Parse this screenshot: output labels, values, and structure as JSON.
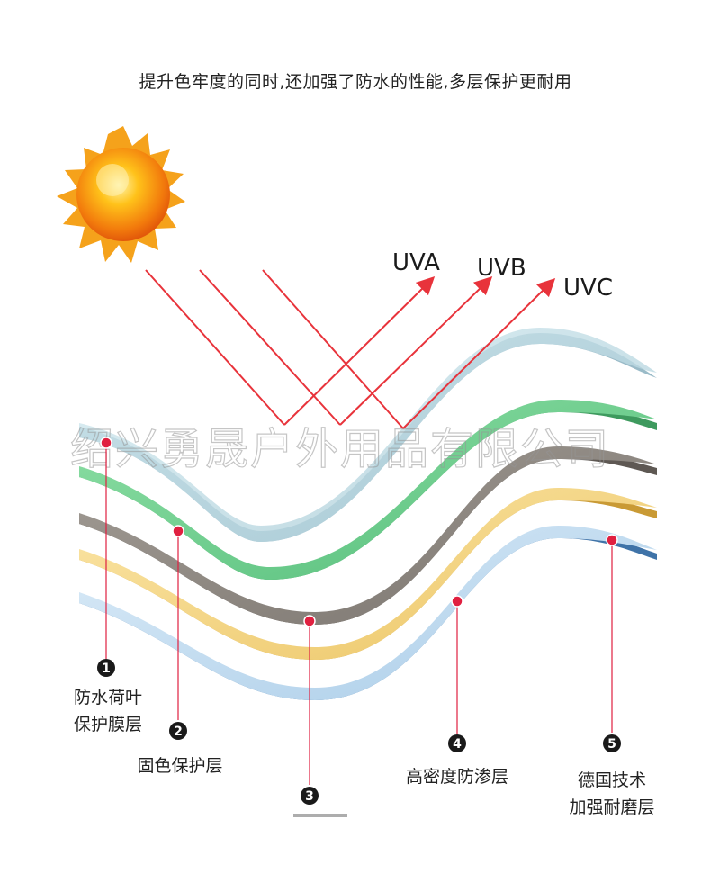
{
  "headline": "提升色牢度的同时,还加强了防水的性能,多层保护更耐用",
  "watermark": "绍兴勇晟户外用品有限公司",
  "uv_rays": [
    {
      "label": "UVA"
    },
    {
      "label": "UVB"
    },
    {
      "label": "UVC"
    }
  ],
  "colors": {
    "ray": "#e8333b",
    "pin": "#e02040",
    "layer_top": "#b8d6e0",
    "layer_green": "#6fcf8f",
    "layer_gray": "#8c8680",
    "layer_yellow": "#f2d27e",
    "layer_blue": "#bcd8ee"
  },
  "layers": [
    {
      "number": "1",
      "line1": "防水荷叶",
      "line2": "保护膜层"
    },
    {
      "number": "2",
      "line1": "固色保护层",
      "line2": ""
    },
    {
      "number": "3",
      "line1": "",
      "line2": ""
    },
    {
      "number": "4",
      "line1": "高密度防渗层",
      "line2": ""
    },
    {
      "number": "5",
      "line1": "德国技术",
      "line2": "加强耐磨层"
    }
  ]
}
